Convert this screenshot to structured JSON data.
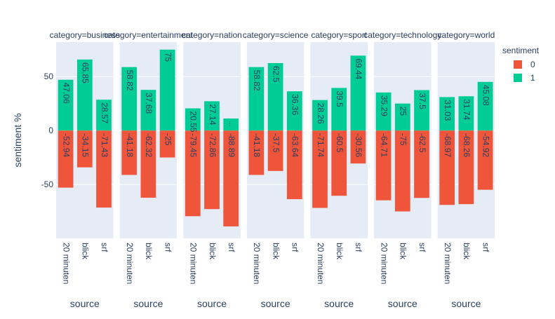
{
  "chart_data": {
    "type": "bar",
    "barmode": "relative",
    "facet_titles": [
      "category=business",
      "category=entertainment",
      "category=nation",
      "category=science",
      "category=sport",
      "category=technology",
      "category=world"
    ],
    "categories": [
      "20 minuten",
      "blick",
      "srf"
    ],
    "xlabel": "source",
    "ylabel": "sentiment %",
    "ylim": [
      -100,
      82
    ],
    "yticks": [
      -50,
      0,
      50
    ],
    "grid": true,
    "legend": {
      "title": "sentiment",
      "placement": "top-right",
      "entries": [
        {
          "name": "0",
          "color": "#EF553B"
        },
        {
          "name": "1",
          "color": "#00CC96"
        }
      ]
    },
    "facets": [
      {
        "title": "category=business",
        "series": [
          {
            "name": "0",
            "values": [
              -52.94,
              -34.15,
              -71.43
            ],
            "labels": [
              "-52.94",
              "-34.15",
              "-71.43"
            ]
          },
          {
            "name": "1",
            "values": [
              47.06,
              65.85,
              28.57
            ],
            "labels": [
              "47.06",
              "65.85",
              "28.57"
            ]
          }
        ]
      },
      {
        "title": "category=entertainment",
        "series": [
          {
            "name": "0",
            "values": [
              -41.18,
              -62.32,
              -25
            ],
            "labels": [
              "-41.18",
              "-62.32",
              "-25"
            ]
          },
          {
            "name": "1",
            "values": [
              58.82,
              37.68,
              75
            ],
            "labels": [
              "58.82",
              "37.68",
              "75"
            ]
          }
        ]
      },
      {
        "title": "category=nation",
        "series": [
          {
            "name": "0",
            "values": [
              -79.45,
              -72.86,
              -88.89
            ],
            "labels": [
              "-79.45",
              "-72.86",
              "-88.89"
            ]
          },
          {
            "name": "1",
            "values": [
              20.55,
              27.14,
              11.11
            ],
            "labels": [
              "20.55",
              "27.14",
              "..."
            ]
          }
        ]
      },
      {
        "title": "category=science",
        "series": [
          {
            "name": "0",
            "values": [
              -41.18,
              -37.5,
              -63.64
            ],
            "labels": [
              "-41.18",
              "-37.5",
              "-63.64"
            ]
          },
          {
            "name": "1",
            "values": [
              58.82,
              62.5,
              36.36
            ],
            "labels": [
              "58.82",
              "62.5",
              "36.36"
            ]
          }
        ]
      },
      {
        "title": "category=sport",
        "series": [
          {
            "name": "0",
            "values": [
              -71.74,
              -60.5,
              -30.56
            ],
            "labels": [
              "-71.74",
              "-60.5",
              "-30.56"
            ]
          },
          {
            "name": "1",
            "values": [
              28.26,
              39.5,
              69.44
            ],
            "labels": [
              "28.26",
              "39.5",
              "69.44"
            ]
          }
        ]
      },
      {
        "title": "category=technology",
        "series": [
          {
            "name": "0",
            "values": [
              -64.71,
              -75,
              -62.5
            ],
            "labels": [
              "-64.71",
              "-75",
              "-62.5"
            ]
          },
          {
            "name": "1",
            "values": [
              35.29,
              25,
              37.5
            ],
            "labels": [
              "35.29",
              "25",
              "37.5"
            ]
          }
        ]
      },
      {
        "title": "category=world",
        "series": [
          {
            "name": "0",
            "values": [
              -68.97,
              -68.26,
              -54.92
            ],
            "labels": [
              "-68.97",
              "-68.26",
              "-54.92"
            ]
          },
          {
            "name": "1",
            "values": [
              31.03,
              31.74,
              45.08
            ],
            "labels": [
              "31.03",
              "31.74",
              "45.08"
            ]
          }
        ]
      }
    ]
  },
  "colors": {
    "plot_background": "#E5ECF6",
    "grid": "#FFFFFF",
    "text": "#2A3F5F",
    "series_0": "#EF553B",
    "series_1": "#00CC96"
  }
}
